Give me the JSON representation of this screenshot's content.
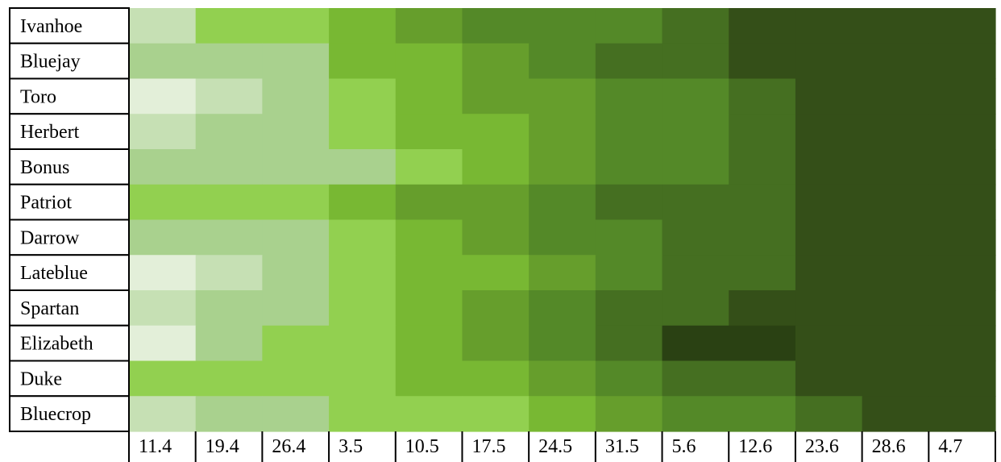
{
  "chart_data": {
    "type": "heatmap",
    "title": "",
    "xlabel": "",
    "ylabel": "",
    "rows": [
      "Ivanhoe",
      "Bluejay",
      "Toro",
      "Herbert",
      "Bonus",
      "Patriot",
      "Darrow",
      "Lateblue",
      "Spartan",
      "Elizabeth",
      "Duke",
      "Bluecrop"
    ],
    "columns": [
      "11.4",
      "19.4",
      "26.4",
      "3.5",
      "10.5",
      "17.5",
      "24.5",
      "31.5",
      "5.6",
      "12.6",
      "23.6",
      "28.6",
      "4.7"
    ],
    "values": [
      [
        2,
        4,
        4,
        5,
        6,
        7,
        7,
        7,
        8,
        9,
        9,
        9,
        9
      ],
      [
        3,
        3,
        3,
        5,
        5,
        6,
        7,
        8,
        8,
        9,
        9,
        9,
        9
      ],
      [
        1,
        2,
        3,
        4,
        5,
        6,
        6,
        7,
        7,
        8,
        9,
        9,
        9
      ],
      [
        2,
        3,
        3,
        4,
        5,
        5,
        6,
        7,
        7,
        8,
        9,
        9,
        9
      ],
      [
        3,
        3,
        3,
        3,
        4,
        5,
        6,
        7,
        7,
        8,
        9,
        9,
        9
      ],
      [
        4,
        4,
        4,
        5,
        6,
        6,
        7,
        8,
        8,
        8,
        9,
        9,
        9
      ],
      [
        3,
        3,
        3,
        4,
        5,
        6,
        7,
        7,
        8,
        8,
        9,
        9,
        9
      ],
      [
        1,
        2,
        3,
        4,
        5,
        5,
        6,
        7,
        8,
        8,
        9,
        9,
        9
      ],
      [
        2,
        3,
        3,
        4,
        5,
        6,
        7,
        8,
        8,
        9,
        9,
        9,
        9
      ],
      [
        1,
        3,
        4,
        4,
        5,
        6,
        7,
        8,
        10,
        10,
        9,
        9,
        9
      ],
      [
        4,
        4,
        4,
        4,
        5,
        5,
        6,
        7,
        8,
        8,
        9,
        9,
        9
      ],
      [
        2,
        3,
        3,
        4,
        4,
        4,
        5,
        6,
        7,
        7,
        8,
        9,
        9
      ]
    ],
    "color_scale": [
      "#ffffff",
      "#e3efd9",
      "#c6e0b4",
      "#a9d18e",
      "#92d050",
      "#78b833",
      "#669e2c",
      "#548928",
      "#456f21",
      "#344f18",
      "#2a4113"
    ],
    "grid": false,
    "legend": "none"
  }
}
